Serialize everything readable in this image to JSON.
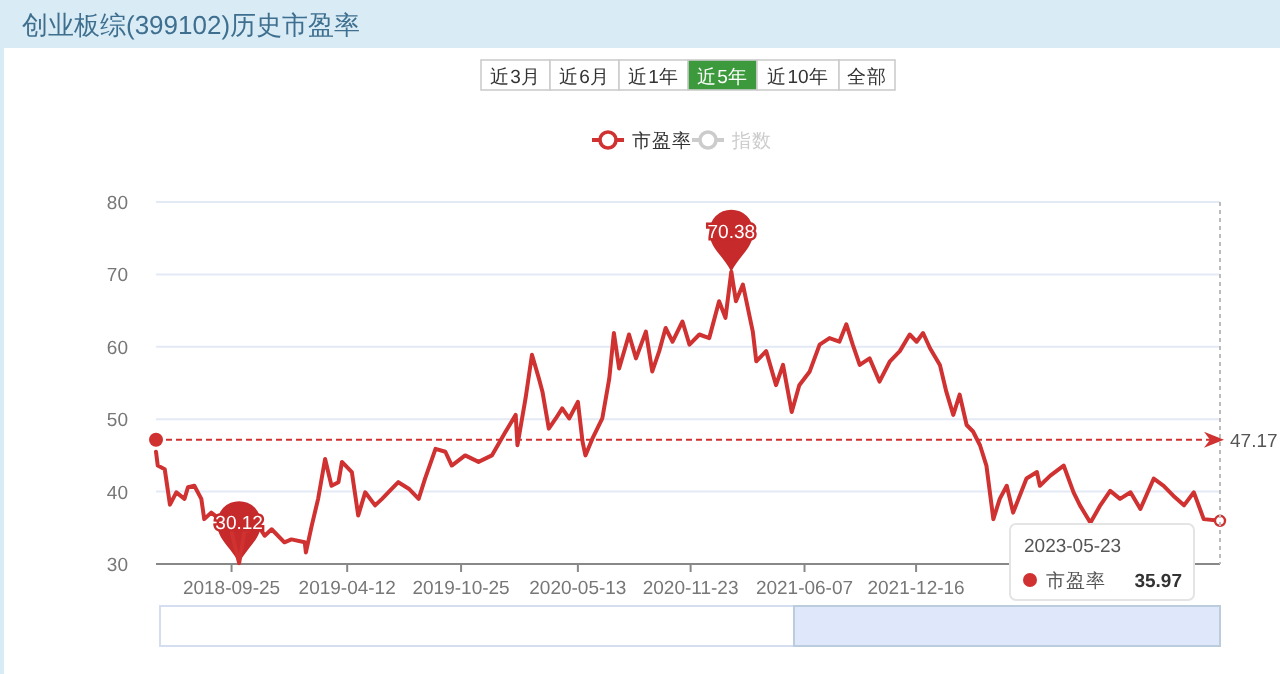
{
  "chart_data": {
    "type": "line",
    "title": "创业板综(399102)历史市盈率",
    "x": [
      "2018-05-18",
      "2018-05-21",
      "2018-06-02",
      "2018-06-11",
      "2018-06-22",
      "2018-07-06",
      "2018-07-12",
      "2018-07-23",
      "2018-08-04",
      "2018-08-09",
      "2018-08-21",
      "2018-09-08",
      "2018-09-24",
      "2018-10-08",
      "2018-10-17",
      "2018-11-10",
      "2018-11-21",
      "2018-12-03",
      "2018-12-25",
      "2019-01-06",
      "2019-01-29",
      "2019-01-31",
      "2019-02-10",
      "2019-02-21",
      "2019-03-05",
      "2019-03-16",
      "2019-03-28",
      "2019-04-03",
      "2019-04-20",
      "2019-05-01",
      "2019-05-13",
      "2019-05-30",
      "2019-06-11",
      "2019-06-28",
      "2019-07-09",
      "2019-07-27",
      "2019-08-13",
      "2019-08-24",
      "2019-09-11",
      "2019-09-28",
      "2019-10-09",
      "2019-11-01",
      "2019-11-24",
      "2019-12-17",
      "2020-01-09",
      "2020-01-27",
      "2020-01-30",
      "2020-02-13",
      "2020-02-24",
      "2020-03-07",
      "2020-03-13",
      "2020-03-24",
      "2020-04-05",
      "2020-04-16",
      "2020-04-28",
      "2020-05-13",
      "2020-05-21",
      "2020-05-26",
      "2020-06-07",
      "2020-06-24",
      "2020-07-06",
      "2020-07-14",
      "2020-07-23",
      "2020-08-09",
      "2020-08-21",
      "2020-09-07",
      "2020-09-18",
      "2020-09-30",
      "2020-10-11",
      "2020-10-23",
      "2020-11-09",
      "2020-11-21",
      "2020-12-08",
      "2020-12-25",
      "2021-01-11",
      "2021-01-22",
      "2021-02-01",
      "2021-02-09",
      "2021-02-21",
      "2021-03-10",
      "2021-03-16",
      "2021-04-02",
      "2021-04-19",
      "2021-05-01",
      "2021-05-16",
      "2021-05-29",
      "2021-06-16",
      "2021-07-03",
      "2021-07-20",
      "2021-08-06",
      "2021-08-18",
      "2021-08-29",
      "2021-09-10",
      "2021-09-27",
      "2021-10-14",
      "2021-11-01",
      "2021-11-18",
      "2021-12-05",
      "2021-12-17",
      "2021-12-28",
      "2022-01-09",
      "2022-01-26",
      "2022-02-06",
      "2022-02-18",
      "2022-03-01",
      "2022-03-13",
      "2022-03-24",
      "2022-04-05",
      "2022-04-16",
      "2022-04-28",
      "2022-05-09",
      "2022-05-21",
      "2022-06-01",
      "2022-06-24",
      "2022-07-12",
      "2022-07-17",
      "2022-08-04",
      "2022-08-27",
      "2022-09-13",
      "2022-09-24",
      "2022-10-12",
      "2022-10-29",
      "2022-11-15",
      "2022-12-02",
      "2022-12-20",
      "2023-01-06",
      "2023-01-29",
      "2023-02-15",
      "2023-03-04",
      "2023-03-22",
      "2023-04-08",
      "2023-04-25",
      "2023-05-23"
    ],
    "series": [
      {
        "name": "市盈率",
        "color": "#d03131",
        "values": [
          45.5,
          43.6,
          43.1,
          38.2,
          39.9,
          39.0,
          40.6,
          40.8,
          39.0,
          36.2,
          37.1,
          36.0,
          34.8,
          30.12,
          34.4,
          35.3,
          33.9,
          34.8,
          33.0,
          33.4,
          33.0,
          31.6,
          35.3,
          39.0,
          44.5,
          40.8,
          41.3,
          44.1,
          42.7,
          36.7,
          39.9,
          38.1,
          39.0,
          40.4,
          41.3,
          40.4,
          39.0,
          41.8,
          45.9,
          45.5,
          43.6,
          45.0,
          44.1,
          45.0,
          48.2,
          50.6,
          46.4,
          52.9,
          58.9,
          55.6,
          53.8,
          48.7,
          50.1,
          51.5,
          50.1,
          52.4,
          46.9,
          45.0,
          47.3,
          50.1,
          55.6,
          61.9,
          57.0,
          61.7,
          58.4,
          62.1,
          56.6,
          59.4,
          62.6,
          60.7,
          63.5,
          60.3,
          61.7,
          61.2,
          66.3,
          64.0,
          70.38,
          66.3,
          68.6,
          62.1,
          58.0,
          59.4,
          54.7,
          57.5,
          51.0,
          54.7,
          56.6,
          60.3,
          61.2,
          60.7,
          63.1,
          60.3,
          57.5,
          58.4,
          55.2,
          58.0,
          59.4,
          61.7,
          60.7,
          61.9,
          59.8,
          57.5,
          53.8,
          50.6,
          53.4,
          49.2,
          48.3,
          46.4,
          43.6,
          36.2,
          39.0,
          40.8,
          37.1,
          41.8,
          42.7,
          40.8,
          42.2,
          43.6,
          39.9,
          38.1,
          35.7,
          38.1,
          40.1,
          39.0,
          39.9,
          37.6,
          41.8,
          40.8,
          39.4,
          38.1,
          39.9,
          36.2,
          35.97
        ]
      }
    ],
    "xlim": [
      "2018-05-18",
      "2023-05-23"
    ],
    "xticks": [
      {
        "value": "2018-09-25",
        "label": "2018-09-25"
      },
      {
        "value": "2019-04-12",
        "label": "2019-04-12"
      },
      {
        "value": "2019-10-25",
        "label": "2019-10-25"
      },
      {
        "value": "2020-05-13",
        "label": "2020-05-13"
      },
      {
        "value": "2020-11-23",
        "label": "2020-11-23"
      },
      {
        "value": "2021-06-07",
        "label": "2021-06-07"
      },
      {
        "value": "2021-12-16",
        "label": "2021-12-16"
      },
      {
        "value": "2022-07-21",
        "label": null
      },
      {
        "value": "2023-02-06",
        "label": null
      }
    ],
    "ylim": [
      30,
      80
    ],
    "yticks": [
      30,
      40,
      50,
      60,
      70,
      80
    ],
    "grid": "y",
    "legend": "top",
    "ref_lines": [
      {
        "axis": "y",
        "value": 47.17,
        "label": "47.17",
        "color": "#d03131",
        "line_style": "dashed"
      }
    ],
    "annotations": [
      "近3月",
      "近6月",
      "近1年",
      "近5年",
      "近10年",
      "全部",
      "指数",
      {
        "text": "30.12",
        "x": "2018-10-08",
        "y": 30.12
      },
      {
        "text": "70.38",
        "x": "2021-02-01",
        "y": 70.38
      },
      "2023-05-23",
      "市盈率",
      "35.97"
    ]
  }
}
